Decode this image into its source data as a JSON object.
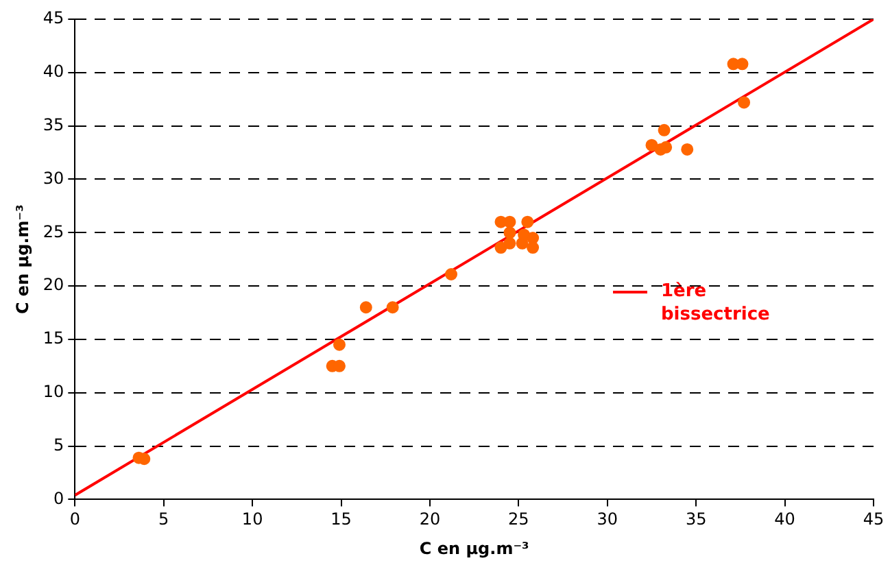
{
  "chart_data": {
    "type": "scatter",
    "xlabel": "C en µg.m⁻³",
    "ylabel": "C en µg.m⁻³",
    "xlim": [
      0,
      45
    ],
    "ylim": [
      0,
      45
    ],
    "xticks": [
      0,
      5,
      10,
      15,
      20,
      25,
      30,
      35,
      40,
      45
    ],
    "yticks": [
      0,
      5,
      10,
      15,
      20,
      25,
      30,
      35,
      40,
      45
    ],
    "grid": "y",
    "legend": "right",
    "series": [
      {
        "marker": "circle",
        "color": "#ff6600",
        "x": [
          3.6,
          3.9,
          14.5,
          14.9,
          14.9,
          16.4,
          17.9,
          21.2,
          24,
          24.5,
          24,
          24.5,
          24.5,
          25.2,
          25.5,
          25.8,
          25.8,
          25.3,
          32.5,
          33,
          33.3,
          33.2,
          34.5,
          37.1,
          37.6,
          37.7
        ],
        "values": [
          3.9,
          3.8,
          12.5,
          12.5,
          14.5,
          18,
          18,
          21.1,
          26,
          26,
          23.6,
          24,
          25,
          24,
          26,
          24.5,
          23.6,
          24.8,
          33.2,
          32.8,
          33,
          34.6,
          32.8,
          40.8,
          40.8,
          37.2
        ]
      },
      {
        "type": "line",
        "name": "1ère bissectrice",
        "color": "#ff0000",
        "x": [
          0,
          45
        ],
        "values": [
          0.4,
          45
        ]
      }
    ]
  }
}
